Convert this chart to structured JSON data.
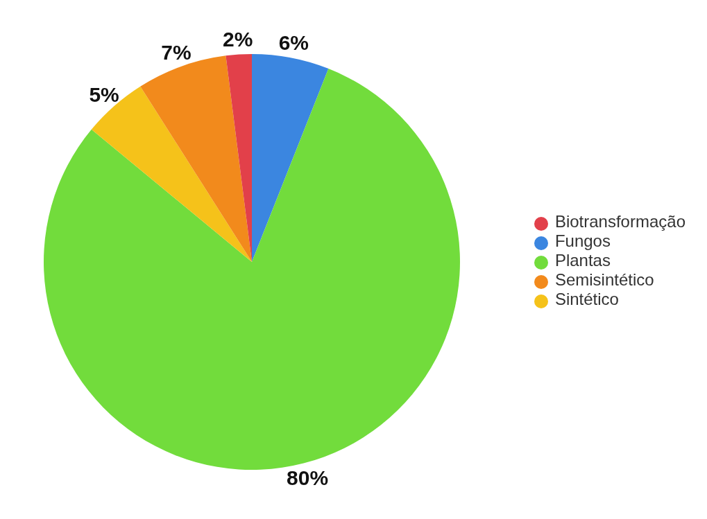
{
  "chart_data": {
    "type": "pie",
    "categories": [
      "Fungos",
      "Plantas",
      "Sintético",
      "Semisintético",
      "Biotransformação"
    ],
    "values": [
      6,
      80,
      5,
      7,
      2
    ],
    "colors": [
      "#3b86e0",
      "#72dc3c",
      "#f5c21a",
      "#f28a1c",
      "#e2404a"
    ],
    "value_labels": [
      "6%",
      "80%",
      "5%",
      "7%",
      "2%"
    ],
    "legend": "right"
  }
}
